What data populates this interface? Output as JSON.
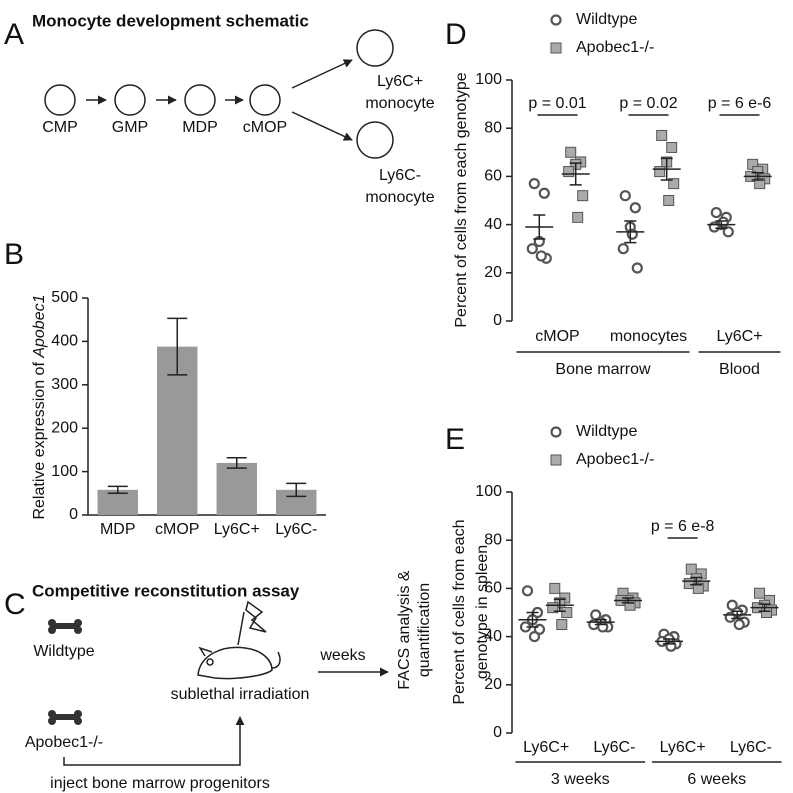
{
  "schematic": {
    "label": "A",
    "title": "Monocyte development schematic",
    "nodes": [
      "CMP",
      "GMP",
      "MDP",
      "cMOP"
    ],
    "outputs": [
      [
        "Ly6C+",
        "monocyte"
      ],
      [
        "Ly6C-",
        "monocyte"
      ]
    ]
  },
  "assay": {
    "label": "C",
    "title": "Competitive reconstitution assay",
    "donors": [
      "Wildtype",
      "Apobec1-/-"
    ],
    "recipient": "sublethal irradiation",
    "injection": "inject bone marrow progenitors",
    "interval": "weeks",
    "readout": [
      "FACS analysis &",
      "quantification"
    ]
  },
  "chart_data": [
    {
      "type": "bar",
      "panel": "B",
      "y_label": [
        "Relative expression of ",
        "Apobec1"
      ],
      "categories": [
        "MDP",
        "cMOP",
        "Ly6C+",
        "Ly6C-"
      ],
      "values": [
        58,
        388,
        120,
        58
      ],
      "errors": [
        8,
        65,
        12,
        15
      ],
      "color": "#999999",
      "ylim": [
        0,
        500
      ],
      "yticks": [
        0,
        100,
        200,
        300,
        400,
        500
      ]
    },
    {
      "type": "scatter",
      "panel": "D",
      "y_label": [
        "Percent of cells from each genotype"
      ],
      "groups": [
        {
          "name": "Bone marrow",
          "categories": [
            "cMOP",
            "monocytes"
          ]
        },
        {
          "name": "Blood",
          "categories": [
            "Ly6C+"
          ]
        }
      ],
      "p_values": [
        "p = 0.01",
        "p = 0.02",
        "p = 6 e-6"
      ],
      "series": [
        {
          "name": "Wildtype",
          "color": "#555555",
          "marker": "circle",
          "values": [
            [
              57,
              53,
              33,
              30,
              26,
              27
            ],
            [
              52,
              47,
              39,
              30,
              22,
              36
            ],
            [
              45,
              43,
              40,
              39,
              37,
              41
            ]
          ],
          "means": [
            39,
            37,
            40
          ],
          "sems": [
            5,
            4.5,
            1.5
          ]
        },
        {
          "name": "Apobec1-/-",
          "color": "#aaaaaa",
          "marker": "square",
          "values": [
            [
              70,
              66,
              65,
              62,
              52,
              43
            ],
            [
              77,
              72,
              66,
              62,
              57,
              50
            ],
            [
              65,
              63,
              62,
              60,
              59,
              57
            ]
          ],
          "means": [
            61,
            63,
            60
          ],
          "sems": [
            4.5,
            4.5,
            1.5
          ]
        }
      ],
      "ylim": [
        0,
        100
      ],
      "yticks": [
        0,
        20,
        40,
        60,
        80,
        100
      ]
    },
    {
      "type": "scatter",
      "panel": "E",
      "y_label": [
        "Percent of cells from each",
        "genotype in spleen"
      ],
      "groups": [
        {
          "name": "3 weeks",
          "categories": [
            "Ly6C+",
            "Ly6C-"
          ]
        },
        {
          "name": "6 weeks",
          "categories": [
            "Ly6C+",
            "Ly6C-"
          ]
        }
      ],
      "p_values": [
        null,
        null,
        "p = 6 e-8",
        null
      ],
      "series": [
        {
          "name": "Wildtype",
          "color": "#555555",
          "marker": "circle",
          "values": [
            [
              59,
              50,
              47,
              44,
              43,
              40
            ],
            [
              49,
              47,
              46,
              45,
              44,
              44
            ],
            [
              41,
              40,
              39,
              38,
              37,
              36
            ],
            [
              53,
              51,
              50,
              48,
              46,
              45
            ]
          ],
          "means": [
            47,
            46,
            38,
            49
          ],
          "sems": [
            3,
            1,
            1,
            1.5
          ]
        },
        {
          "name": "Apobec1-/-",
          "color": "#aaaaaa",
          "marker": "square",
          "values": [
            [
              60,
              56,
              54,
              52,
              50,
              45
            ],
            [
              58,
              56,
              55,
              55,
              54,
              53
            ],
            [
              68,
              66,
              64,
              62,
              61,
              60
            ],
            [
              58,
              55,
              53,
              52,
              51,
              50
            ]
          ],
          "means": [
            53,
            55,
            63,
            52
          ],
          "sems": [
            2.5,
            1,
            1.5,
            1.5
          ]
        }
      ],
      "ylim": [
        0,
        100
      ],
      "yticks": [
        0,
        20,
        40,
        60,
        80,
        100
      ]
    }
  ]
}
